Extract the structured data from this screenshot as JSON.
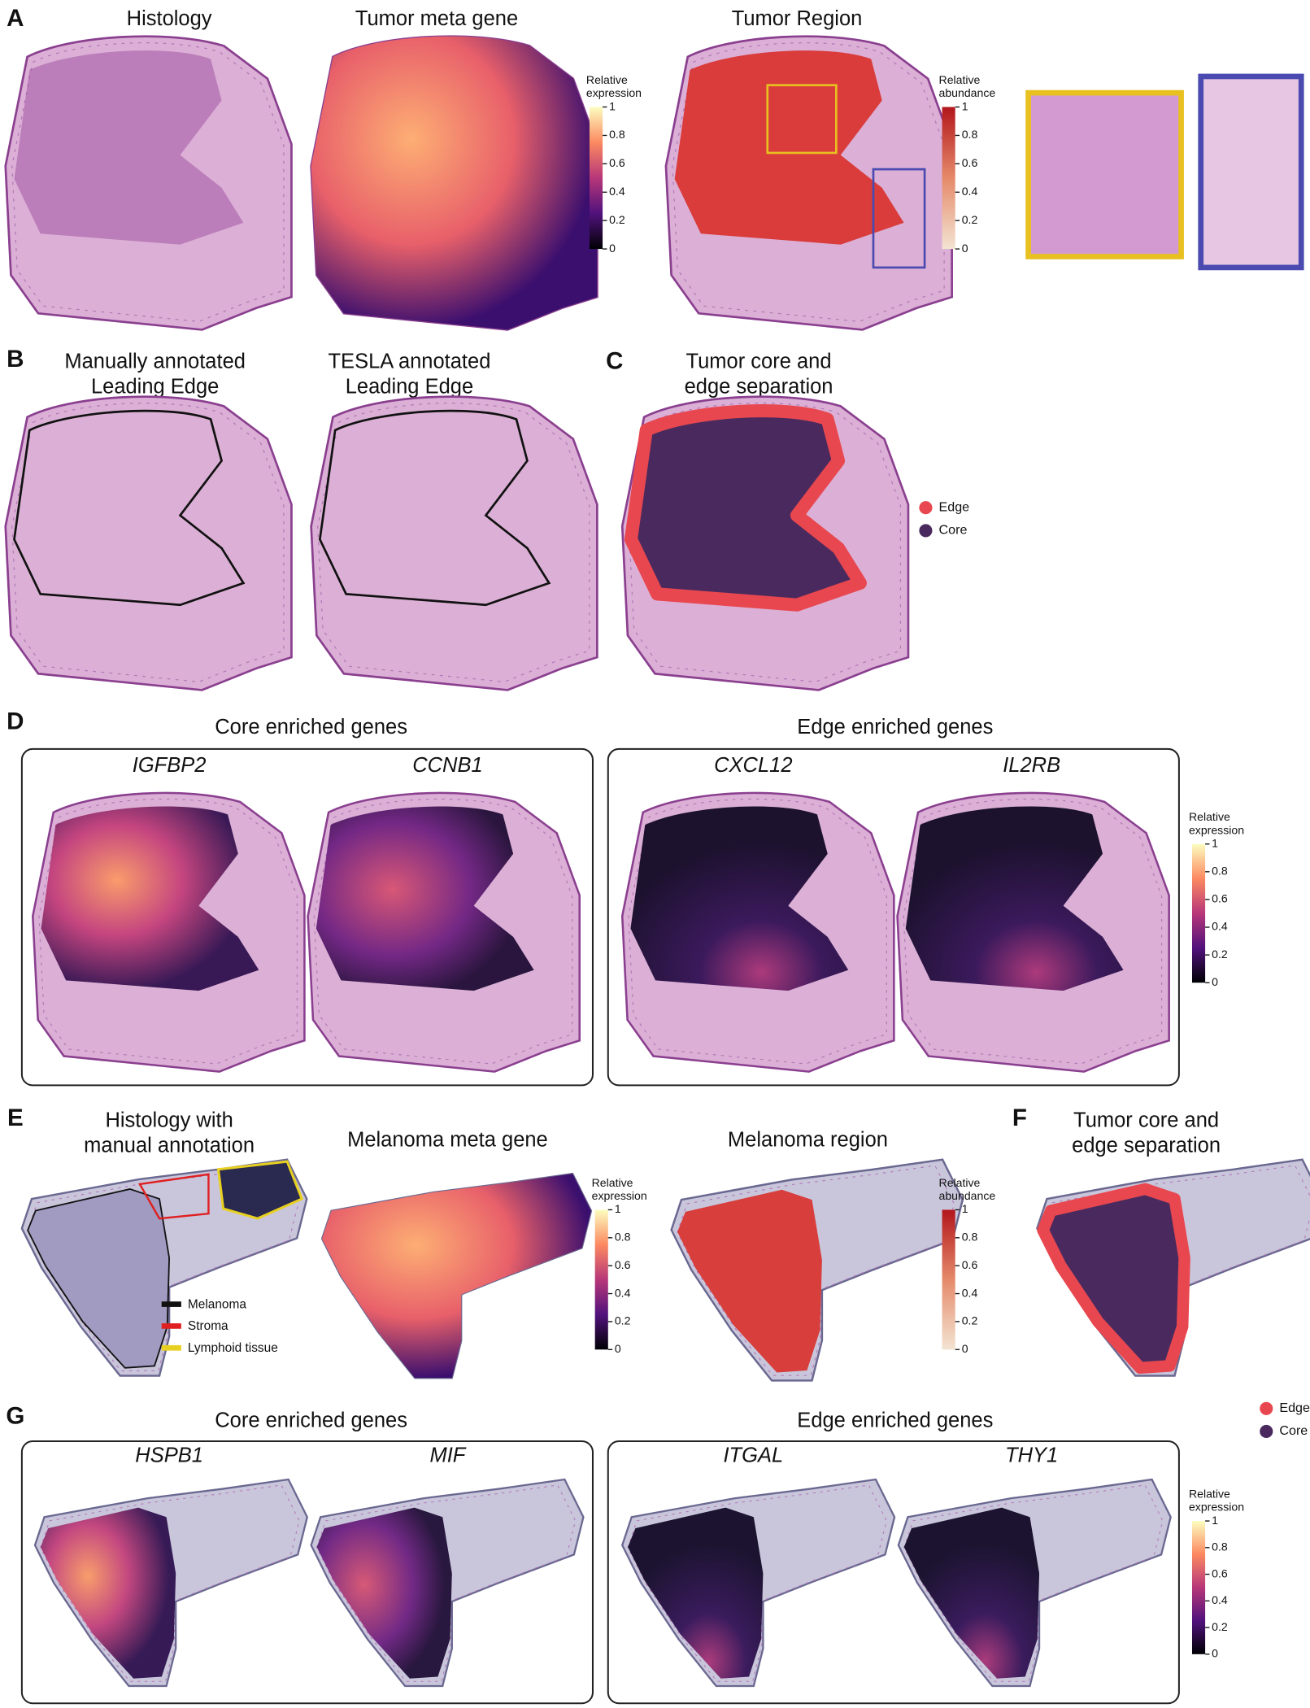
{
  "panel_labels": [
    "A",
    "B",
    "C",
    "D",
    "E",
    "F",
    "G"
  ],
  "A": {
    "titles": [
      "Histology",
      "Tumor meta gene",
      "Tumor Region"
    ],
    "colorbars": [
      {
        "title": [
          "Relative",
          "expression"
        ],
        "ticks": [
          0,
          0.2,
          0.4,
          0.6,
          0.8,
          1
        ]
      },
      {
        "title": [
          "Relative",
          "abundance"
        ],
        "ticks": [
          0,
          0.2,
          0.4,
          0.6,
          0.8,
          1
        ]
      }
    ]
  },
  "B": {
    "titles": [
      [
        "Manually annotated",
        "Leading Edge"
      ],
      [
        "TESLA annotated",
        "Leading Edge"
      ]
    ]
  },
  "C": {
    "title": [
      "Tumor core and",
      "edge separation"
    ],
    "legend": [
      "Edge",
      "Core"
    ]
  },
  "D": {
    "groups": [
      "Core enriched genes",
      "Edge enriched genes"
    ],
    "genes": [
      "IGFBP2",
      "CCNB1",
      "CXCL12",
      "IL2RB"
    ],
    "colorbar": {
      "title": [
        "Relative",
        "expression"
      ],
      "ticks": [
        0,
        0.2,
        0.4,
        0.6,
        0.8,
        1
      ]
    }
  },
  "E": {
    "titles": [
      [
        "Histology with",
        "manual annotation"
      ],
      [
        "Melanoma meta gene"
      ],
      [
        "Melanoma region"
      ]
    ],
    "legend": [
      "Melanoma",
      "Stroma",
      "Lymphoid tissue"
    ],
    "colorbars": [
      {
        "title": [
          "Relative",
          "expression"
        ],
        "ticks": [
          0,
          0.2,
          0.4,
          0.6,
          0.8,
          1
        ]
      },
      {
        "title": [
          "Relative",
          "abundance"
        ],
        "ticks": [
          0,
          0.2,
          0.4,
          0.6,
          0.8,
          1
        ]
      }
    ]
  },
  "F": {
    "title": [
      "Tumor core and",
      "edge separation"
    ],
    "legend": [
      "Edge",
      "Core"
    ]
  },
  "G": {
    "groups": [
      "Core enriched genes",
      "Edge enriched genes"
    ],
    "genes": [
      "HSPB1",
      "MIF",
      "ITGAL",
      "THY1"
    ],
    "colorbar": {
      "title": [
        "Relative",
        "expression"
      ],
      "ticks": [
        0,
        0.2,
        0.4,
        0.6,
        0.8,
        1
      ]
    }
  }
}
